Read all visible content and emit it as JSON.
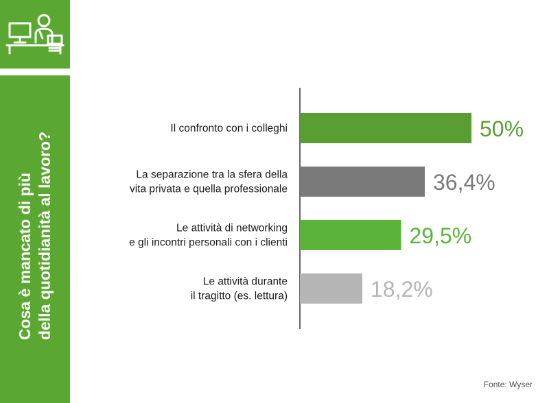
{
  "sidebar": {
    "icon": "office-worker-desk-icon",
    "title_lines": [
      "Cosa è mancato di più",
      "della quotidianità al lavoro?"
    ],
    "color": "#5aa832"
  },
  "source": "Fonte: Wyser",
  "chart_data": {
    "type": "bar",
    "orientation": "horizontal",
    "categories": [
      [
        "Il confronto con i colleghi"
      ],
      [
        "La separazione tra la sfera della",
        "vita privata e quella professionale"
      ],
      [
        "Le attività di networking",
        "e gli incontri personali con i clienti"
      ],
      [
        "Le attività durante",
        "il tragitto (es. lettura)"
      ]
    ],
    "values": [
      50,
      36.4,
      29.5,
      18.2
    ],
    "value_labels": [
      "50%",
      "36,4%",
      "29,5%",
      "18,2%"
    ],
    "bar_colors": [
      "#5a9e33",
      "#7a7a7a",
      "#5cb33a",
      "#b5b5b5"
    ],
    "label_colors": [
      "#5a9e33",
      "#7a7a7a",
      "#5cb33a",
      "#b5b5b5"
    ],
    "xlim": [
      0,
      50
    ],
    "grid": false,
    "legend": "none"
  }
}
